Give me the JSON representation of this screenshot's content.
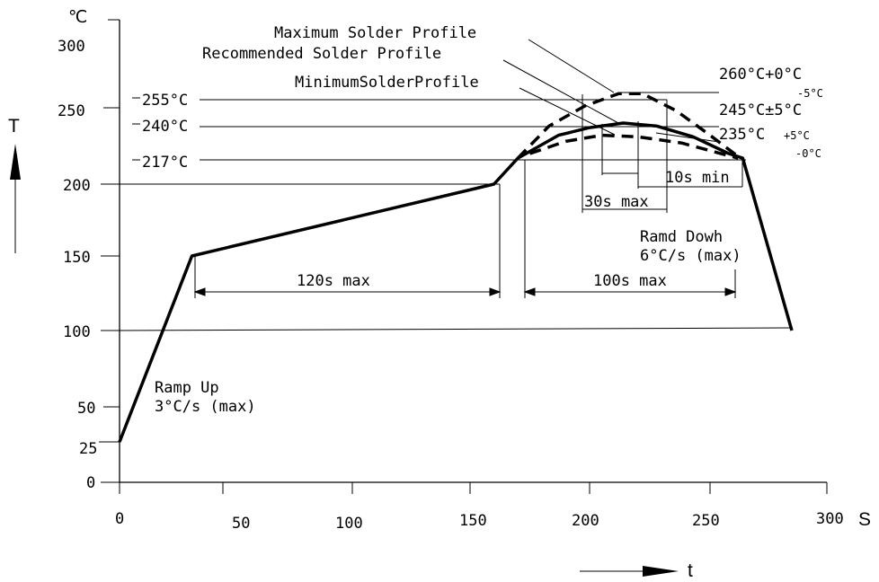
{
  "chart_data": {
    "type": "line",
    "y_unit": "℃",
    "x_unit": "S",
    "y_axis_symbol": "T",
    "x_axis_symbol": "t",
    "xlim": [
      0,
      300
    ],
    "ylim": [
      0,
      300
    ],
    "x_ticks": [
      "0",
      "50",
      "100",
      "150",
      "200",
      "250",
      "300"
    ],
    "y_ticks": [
      "300",
      "250",
      "200",
      "150",
      "100",
      "50",
      "25",
      "0"
    ],
    "series": [
      {
        "name": "Recommended Solder Profile",
        "style": "solid-thick",
        "points": [
          [
            0,
            25
          ],
          [
            35,
            150
          ],
          [
            160,
            200
          ],
          [
            170,
            217
          ],
          [
            187,
            232
          ],
          [
            200,
            237
          ],
          [
            214,
            240
          ],
          [
            228,
            238
          ],
          [
            243,
            231
          ],
          [
            258,
            220
          ],
          [
            264,
            217
          ],
          [
            285,
            100
          ]
        ]
      },
      {
        "name": "Maximum Solder Profile",
        "style": "dashed",
        "points": [
          [
            170,
            217
          ],
          [
            183,
            238
          ],
          [
            198,
            251
          ],
          [
            212,
            258
          ],
          [
            222,
            258
          ],
          [
            236,
            248
          ],
          [
            250,
            232
          ],
          [
            263,
            217
          ]
        ]
      },
      {
        "name": "MinimumSolderProfile",
        "style": "dashed",
        "points": [
          [
            175,
            220
          ],
          [
            190,
            228
          ],
          [
            205,
            232
          ],
          [
            220,
            231
          ],
          [
            238,
            227
          ],
          [
            262,
            217
          ]
        ]
      }
    ],
    "temperature_lines": [
      "255°C",
      "240°C",
      "217°C"
    ],
    "peak_labels": {
      "max_main": "260°C+0°C",
      "max_sub": "-5°C",
      "recommended": "245°C±5°C",
      "min_main": "235°C",
      "min_tol_plus": "+5°C",
      "min_tol_minus": "-0°C"
    },
    "annotations": {
      "max_profile": "Maximum  Solder  Profile",
      "recommended_profile": "Recommended  Solder  Profile",
      "min_profile": "MinimumSolderProfile",
      "preheat": "120s max",
      "above_liquidus": "100s max",
      "near_peak": "30s max",
      "at_peak": "10s min",
      "ramp_up_1": "Ramp Up",
      "ramp_up_2": "3°C/s (max)",
      "ramp_down_1": "Ramd Dowh",
      "ramp_down_2": "6°C/s (max)"
    }
  }
}
